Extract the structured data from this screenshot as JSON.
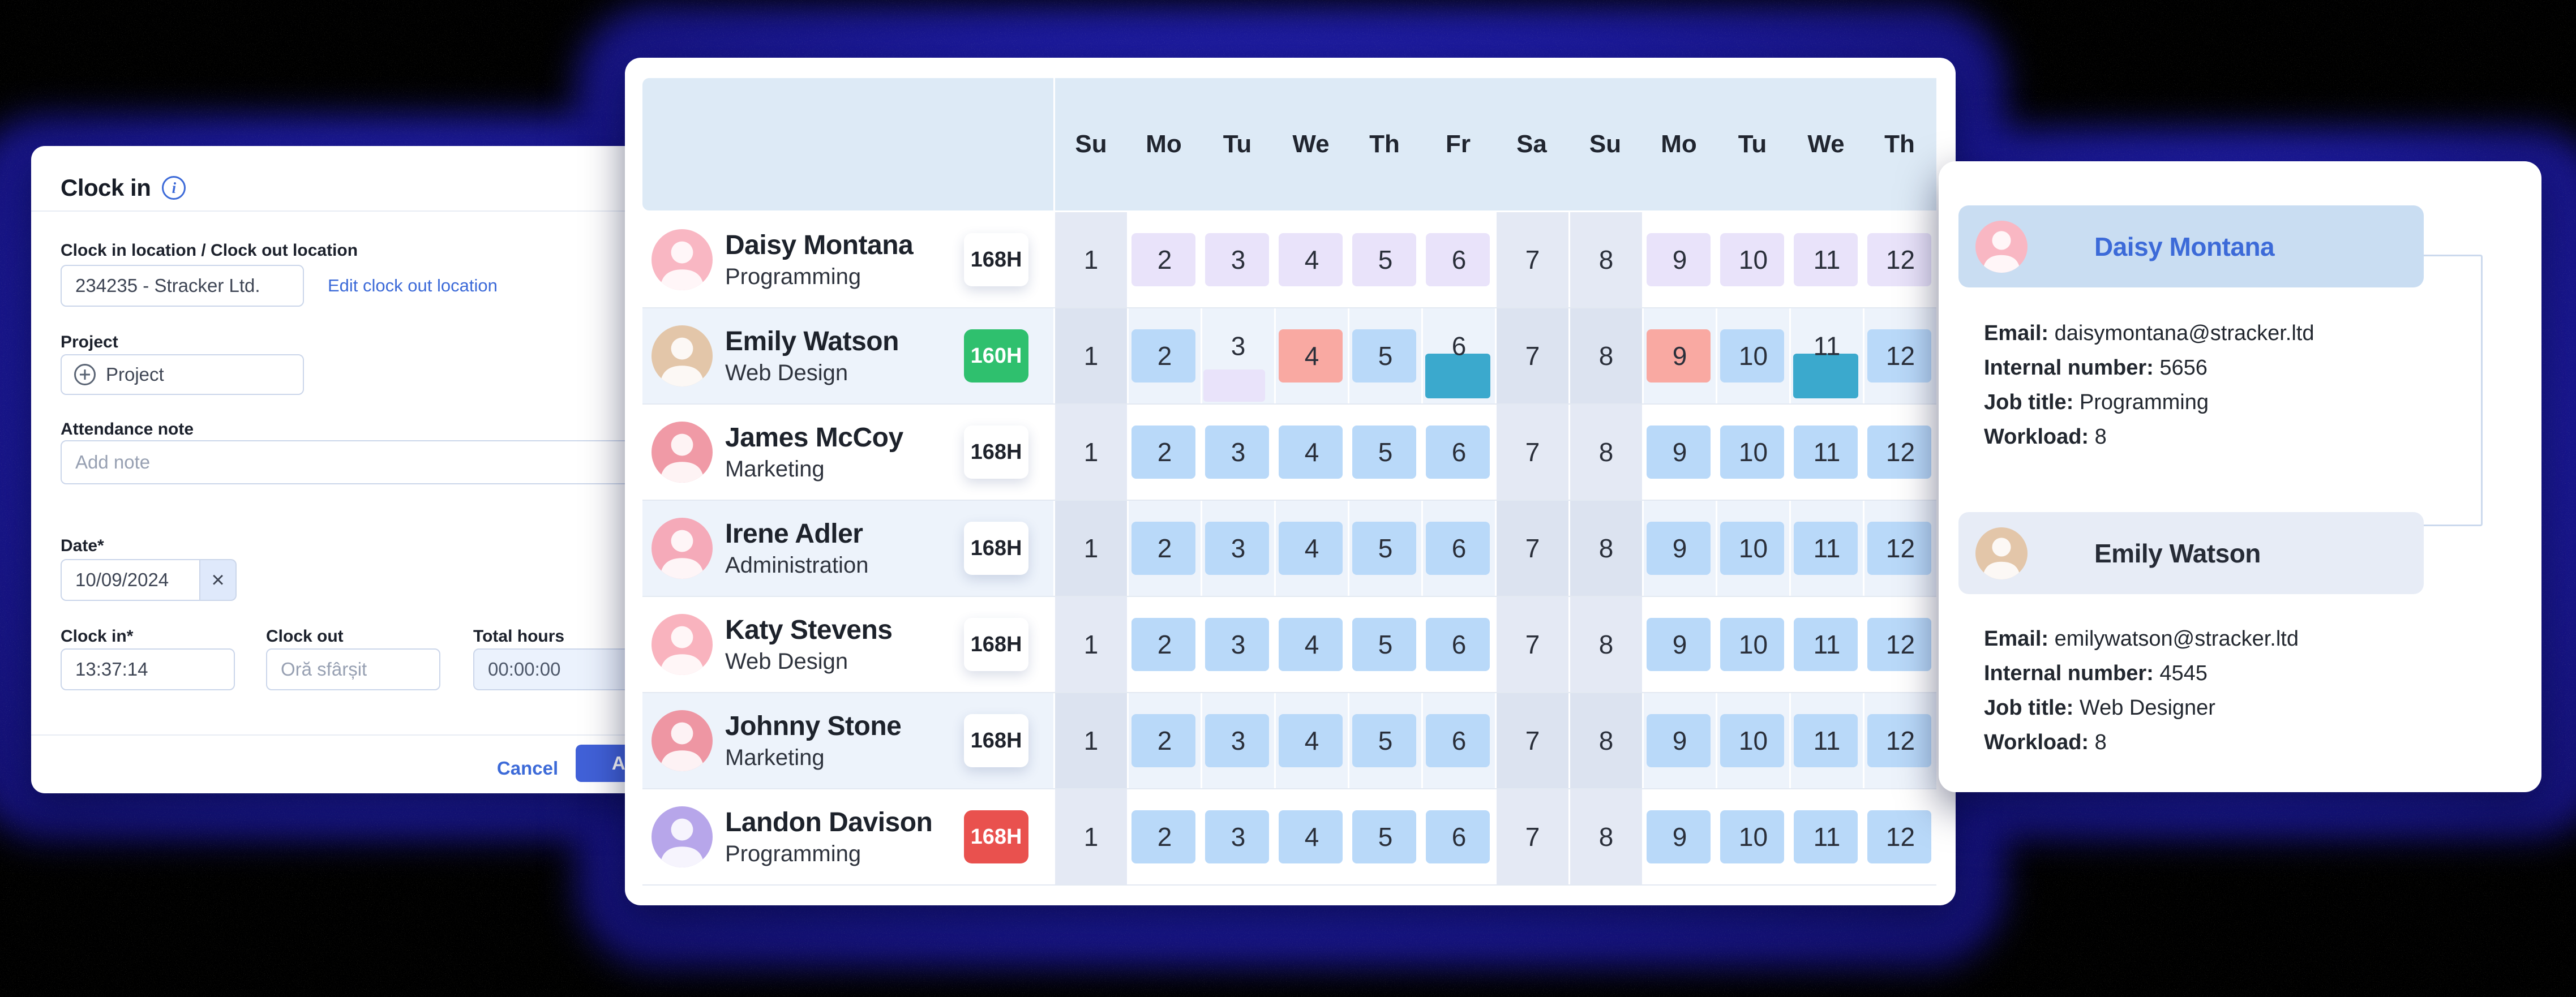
{
  "colors": {
    "accent": "#3c6ad8",
    "navy_glow": "#1b199a",
    "badge_green": "#2fc06e",
    "badge_red": "#e9514e",
    "chip_lavender": "#e9e3fa",
    "chip_blue": "#b9d9f9",
    "chip_salmon": "#f9a9a2",
    "chip_teal": "#3ba9cd",
    "header_band": "#ddeaf6",
    "weekend_col": "#e4e9f4",
    "row_tint": "#edf3fb"
  },
  "clock_in_panel": {
    "title": "Clock in",
    "location_label": "Clock in location / Clock out location",
    "location_value": "234235 - Stracker Ltd.",
    "edit_location_link": "Edit clock out location",
    "project_label": "Project",
    "project_placeholder": "Project",
    "note_label": "Attendance note",
    "note_placeholder": "Add note",
    "date_label": "Date*",
    "date_value": "10/09/2024",
    "clear_icon": "×",
    "clock_in_label": "Clock in*",
    "clock_in_value": "13:37:14",
    "clock_out_label": "Clock out",
    "clock_out_placeholder": "Oră sfârșit",
    "total_hours_label": "Total hours",
    "total_hours_value": "00:00:00",
    "cancel_label": "Cancel",
    "add_label": "Add"
  },
  "schedule": {
    "days": [
      "Su",
      "Mo",
      "Tu",
      "We",
      "Th",
      "Fr",
      "Sa",
      "Su",
      "Mo",
      "Tu",
      "We",
      "Th"
    ],
    "day_numbers": [
      1,
      2,
      3,
      4,
      5,
      6,
      7,
      8,
      9,
      10,
      11,
      12
    ],
    "weekend_indices": [
      0,
      6,
      7
    ],
    "rows": [
      {
        "name": "Daisy Montana",
        "role": "Programming",
        "hours": "168H",
        "badge_type": "white",
        "avatar_color": "#f9b7c3",
        "cells": [
          null,
          "lavender",
          "lavender",
          "lavender",
          "lavender",
          "lavender",
          null,
          null,
          "lavender",
          "lavender",
          "lavender",
          "lavender"
        ]
      },
      {
        "name": "Emily Watson",
        "role": "Web Design",
        "hours": "160H",
        "badge_type": "green",
        "avatar_color": "#e3c6a9",
        "cells": [
          null,
          "blue",
          "lavender_low",
          "salmon",
          "blue",
          "teal_low",
          null,
          null,
          "salmon",
          "blue",
          "teal_low",
          "blue"
        ]
      },
      {
        "name": "James McCoy",
        "role": "Marketing",
        "hours": "168H",
        "badge_type": "white",
        "avatar_color": "#f09aa6",
        "cells": [
          null,
          "blue",
          "blue",
          "blue",
          "blue",
          "blue",
          null,
          null,
          "blue",
          "blue",
          "blue",
          "blue"
        ]
      },
      {
        "name": "Irene Adler",
        "role": "Administration",
        "hours": "168H",
        "badge_type": "white",
        "avatar_color": "#f5aab9",
        "cells": [
          null,
          "blue",
          "blue",
          "blue",
          "blue",
          "blue",
          null,
          null,
          "blue",
          "blue",
          "blue",
          "blue"
        ]
      },
      {
        "name": "Katy Stevens",
        "role": "Web Design",
        "hours": "168H",
        "badge_type": "white",
        "avatar_color": "#f9b3be",
        "cells": [
          null,
          "blue",
          "blue",
          "blue",
          "blue",
          "blue",
          null,
          null,
          "blue",
          "blue",
          "blue",
          "blue"
        ]
      },
      {
        "name": "Johnny Stone",
        "role": "Marketing",
        "hours": "168H",
        "badge_type": "white",
        "avatar_color": "#ee96a3",
        "cells": [
          null,
          "blue",
          "blue",
          "blue",
          "blue",
          "blue",
          null,
          null,
          "blue",
          "blue",
          "blue",
          "blue"
        ]
      },
      {
        "name": "Landon Davison",
        "role": "Programming",
        "hours": "168H",
        "badge_type": "red",
        "avatar_color": "#b7a6ea",
        "cells": [
          null,
          "blue",
          "blue",
          "blue",
          "blue",
          "blue",
          null,
          null,
          "blue",
          "blue",
          "blue",
          "blue"
        ]
      }
    ]
  },
  "profiles_panel": {
    "field_labels": [
      "Email:",
      "Internal number:",
      "Job title:",
      "Workload:"
    ],
    "profiles": [
      {
        "name": "Daisy Montana",
        "band": "b1",
        "avatar_color": "#f9b7c3",
        "email": "daisymontana@stracker.ltd",
        "internal_number": "5656",
        "job_title": "Programming",
        "workload": "8"
      },
      {
        "name": "Emily Watson",
        "band": "b2",
        "avatar_color": "#e3c6a9",
        "email": "emilywatson@stracker.ltd",
        "internal_number": "4545",
        "job_title": "Web Designer",
        "workload": "8"
      }
    ]
  }
}
